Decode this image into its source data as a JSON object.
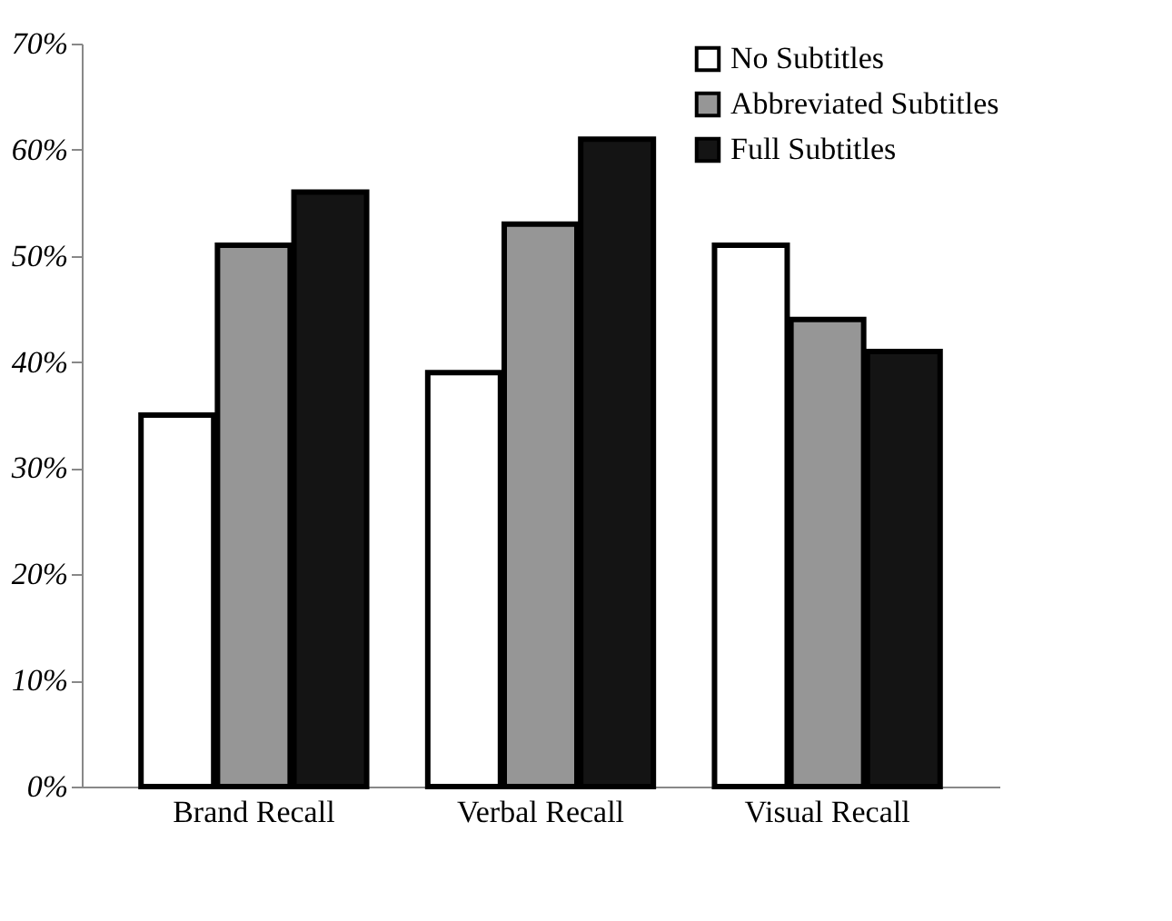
{
  "chart_data": {
    "type": "bar",
    "categories": [
      "Brand Recall",
      "Verbal Recall",
      "Visual Recall"
    ],
    "series": [
      {
        "name": "No Subtitles",
        "color": "#ffffff",
        "values": [
          35,
          39,
          51
        ]
      },
      {
        "name": "Abbreviated Subtitles",
        "color": "#969696",
        "values": [
          51,
          53,
          44
        ]
      },
      {
        "name": "Full Subtitles",
        "color": "#141414",
        "values": [
          56,
          61,
          41
        ]
      }
    ],
    "ylim": [
      0,
      70
    ],
    "yticks": [
      {
        "value": 0,
        "label": "0%"
      },
      {
        "value": 10,
        "label": "10%"
      },
      {
        "value": 20,
        "label": "20%"
      },
      {
        "value": 30,
        "label": "30%"
      },
      {
        "value": 40,
        "label": "40%"
      },
      {
        "value": 50,
        "label": "50%"
      },
      {
        "value": 60,
        "label": "60%"
      },
      {
        "value": 70,
        "label": "70%"
      }
    ],
    "grid": false,
    "legend": "top right"
  }
}
